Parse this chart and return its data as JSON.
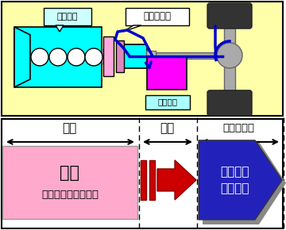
{
  "bg_color": "#ffffaa",
  "fig_bg": "#ffffff",
  "engine_color": "#00ffff",
  "motor_color": "#ff00ff",
  "motor_label_bg": "#aaffff",
  "pink_box_color": "#ffaacc",
  "blue_color": "#0000cc",
  "red_color": "#cc0000",
  "gray_color": "#aaaaaa",
  "dark_gray": "#777777",
  "wheel_color": "#444444",
  "labels": {
    "engine": "エンジン",
    "clutch": "クラッチ断",
    "motor": "モーター",
    "decel": "減速",
    "stop": "停車",
    "accel": "発進・加速",
    "regen": "回生",
    "regen_sub": "（エンジン切放し）",
    "assist": "モーター\nアシスト"
  }
}
